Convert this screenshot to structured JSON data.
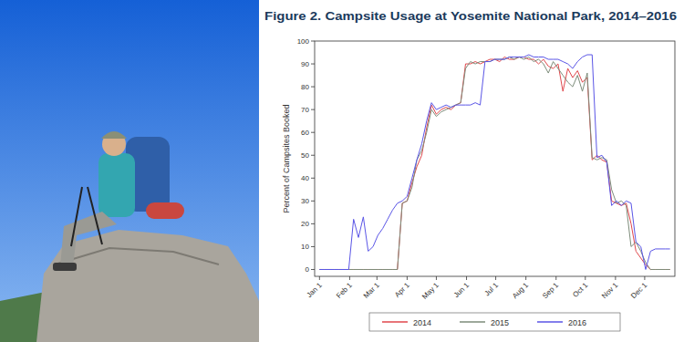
{
  "chart_data": {
    "type": "line",
    "title": "Figure 2. Campsite Usage at Yosemite National Park, 2014–2016",
    "y_label": "Percent of Campsites Booked",
    "x": [
      1,
      6,
      11,
      16,
      21,
      26,
      31,
      36,
      41,
      46,
      51,
      56,
      61,
      66,
      71,
      76,
      81,
      86,
      91,
      96,
      101,
      106,
      111,
      116,
      121,
      126,
      131,
      136,
      141,
      146,
      151,
      156,
      161,
      166,
      171,
      176,
      181,
      186,
      191,
      196,
      201,
      206,
      211,
      216,
      221,
      226,
      231,
      236,
      241,
      246,
      251,
      256,
      261,
      266,
      271,
      276,
      281,
      286,
      291,
      296,
      301,
      306,
      311,
      316,
      321,
      326,
      331,
      336,
      341,
      346,
      351,
      356,
      361
    ],
    "series": [
      {
        "name": "2014",
        "color": "#e0474c",
        "values": [
          0,
          0,
          0,
          0,
          0,
          0,
          0,
          0,
          0,
          0,
          0,
          0,
          0,
          0,
          0,
          0,
          0,
          29,
          30,
          38,
          45,
          50,
          62,
          72,
          68,
          70,
          71,
          70,
          72,
          73,
          90,
          90,
          91,
          90,
          91,
          92,
          92,
          91,
          93,
          92,
          92,
          93,
          93,
          92,
          92,
          90,
          92,
          89,
          88,
          90,
          78,
          88,
          84,
          87,
          82,
          84,
          48,
          50,
          48,
          47,
          30,
          29,
          28,
          29,
          20,
          8,
          5,
          2,
          0,
          0,
          0,
          0,
          0
        ]
      },
      {
        "name": "2015",
        "color": "#7d8c7a",
        "values": [
          0,
          0,
          0,
          0,
          0,
          0,
          0,
          0,
          0,
          0,
          0,
          0,
          0,
          0,
          0,
          0,
          0,
          29,
          30,
          36,
          48,
          52,
          60,
          70,
          67,
          69,
          70,
          71,
          72,
          73,
          88,
          91,
          90,
          91,
          91,
          91,
          92,
          92,
          92,
          93,
          92,
          93,
          92,
          93,
          91,
          92,
          90,
          86,
          91,
          88,
          85,
          82,
          80,
          85,
          78,
          86,
          49,
          48,
          49,
          48,
          35,
          29,
          30,
          28,
          10,
          12,
          8,
          3,
          0,
          0,
          0,
          0,
          0
        ]
      },
      {
        "name": "2016",
        "color": "#5a55e6",
        "values": [
          0,
          0,
          0,
          0,
          0,
          0,
          0,
          22,
          14,
          23,
          8,
          10,
          15,
          18,
          22,
          26,
          29,
          30,
          32,
          40,
          48,
          55,
          65,
          73,
          70,
          71,
          72,
          71,
          72,
          72,
          72,
          72,
          73,
          72,
          91,
          91,
          92,
          92,
          92,
          93,
          93,
          93,
          93,
          94,
          93,
          93,
          93,
          92,
          92,
          92,
          91,
          90,
          88,
          91,
          93,
          94,
          94,
          49,
          50,
          47,
          28,
          30,
          28,
          30,
          29,
          12,
          10,
          0,
          8,
          9,
          9,
          9,
          9
        ]
      }
    ],
    "xlim": [
      -4,
      366
    ],
    "xticks": [
      {
        "value": 1,
        "label": "Jan 1"
      },
      {
        "value": 32,
        "label": "Feb 1"
      },
      {
        "value": 60,
        "label": "Mar 1"
      },
      {
        "value": 91,
        "label": "Apr 1"
      },
      {
        "value": 121,
        "label": "May 1"
      },
      {
        "value": 152,
        "label": "Jun 1"
      },
      {
        "value": 182,
        "label": "Jul 1"
      },
      {
        "value": 213,
        "label": "Aug 1"
      },
      {
        "value": 244,
        "label": "Sep 1"
      },
      {
        "value": 274,
        "label": "Oct 1"
      },
      {
        "value": 305,
        "label": "Nov 1"
      },
      {
        "value": 335,
        "label": "Dec 1"
      }
    ],
    "ylim": [
      -3,
      100
    ],
    "yticks": [
      0,
      10,
      20,
      30,
      40,
      50,
      60,
      70,
      80,
      90,
      100
    ],
    "grid": false,
    "legend": "bottom"
  }
}
